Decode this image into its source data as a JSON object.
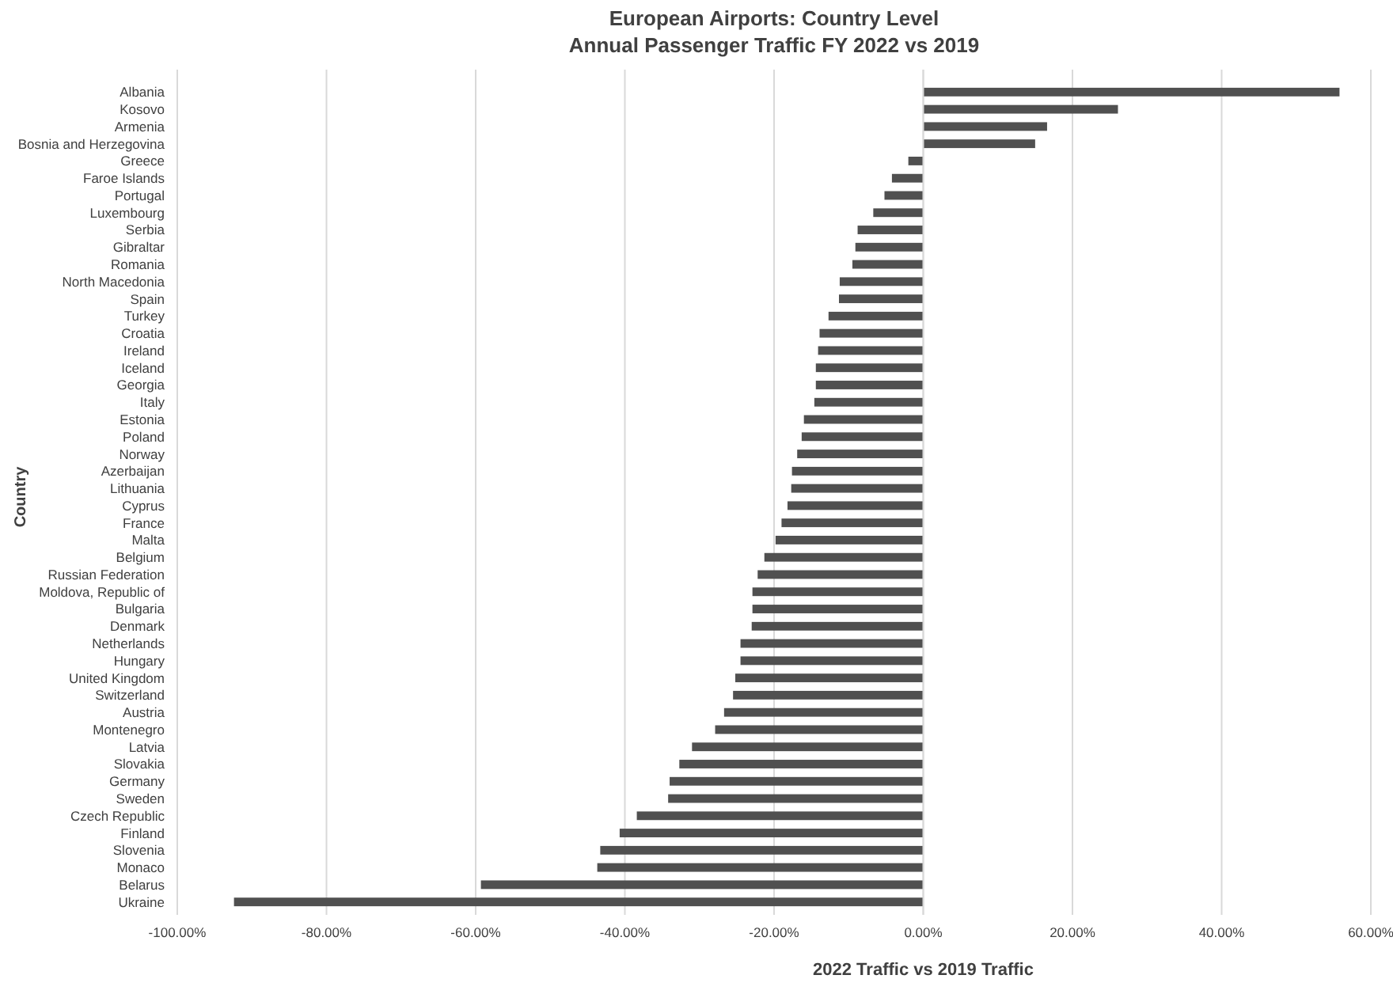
{
  "chart_data": {
    "type": "bar",
    "orientation": "horizontal",
    "title": "European Airports: Country Level\nAnnual Passenger Traffic FY 2022 vs 2019",
    "xlabel": "2022 Traffic vs 2019 Traffic",
    "ylabel": "Country",
    "categories": [
      "Albania",
      "Kosovo",
      "Armenia",
      "Bosnia and Herzegovina",
      "Greece",
      "Faroe Islands",
      "Portugal",
      "Luxembourg",
      "Serbia",
      "Gibraltar",
      "Romania",
      "North Macedonia",
      "Spain",
      "Turkey",
      "Croatia",
      "Ireland",
      "Iceland",
      "Georgia",
      "Italy",
      "Estonia",
      "Poland",
      "Norway",
      "Azerbaijan",
      "Lithuania",
      "Cyprus",
      "France",
      "Malta",
      "Belgium",
      "Russian Federation",
      "Moldova, Republic of",
      "Bulgaria",
      "Denmark",
      "Netherlands",
      "Hungary",
      "United Kingdom",
      "Switzerland",
      "Austria",
      "Montenegro",
      "Latvia",
      "Slovakia",
      "Germany",
      "Sweden",
      "Czech Republic",
      "Finland",
      "Slovenia",
      "Monaco",
      "Belarus",
      "Ukraine"
    ],
    "values": [
      55.8,
      26.1,
      16.6,
      15.0,
      -2.0,
      -4.2,
      -5.2,
      -6.7,
      -8.8,
      -9.1,
      -9.5,
      -11.2,
      -11.3,
      -12.7,
      -13.9,
      -14.1,
      -14.4,
      -14.4,
      -14.6,
      -16.0,
      -16.3,
      -16.9,
      -17.6,
      -17.7,
      -18.2,
      -19.0,
      -19.8,
      -21.3,
      -22.2,
      -22.9,
      -22.9,
      -23.0,
      -24.5,
      -24.5,
      -25.2,
      -25.5,
      -26.7,
      -27.9,
      -31.0,
      -32.7,
      -34.0,
      -34.2,
      -38.4,
      -40.7,
      -43.3,
      -43.7,
      -59.3,
      -92.4
    ],
    "color": "#505050",
    "xlim": [
      -100,
      60
    ],
    "xticks": [
      {
        "value": -100,
        "label": "-100.00%"
      },
      {
        "value": -80,
        "label": "-80.00%"
      },
      {
        "value": -60,
        "label": "-60.00%"
      },
      {
        "value": -40,
        "label": "-40.00%"
      },
      {
        "value": -20,
        "label": "-20.00%"
      },
      {
        "value": 0,
        "label": "0.00%"
      },
      {
        "value": 20,
        "label": "20.00%"
      },
      {
        "value": 40,
        "label": "40.00%"
      },
      {
        "value": 60,
        "label": "60.00%"
      }
    ],
    "grid": "x"
  }
}
